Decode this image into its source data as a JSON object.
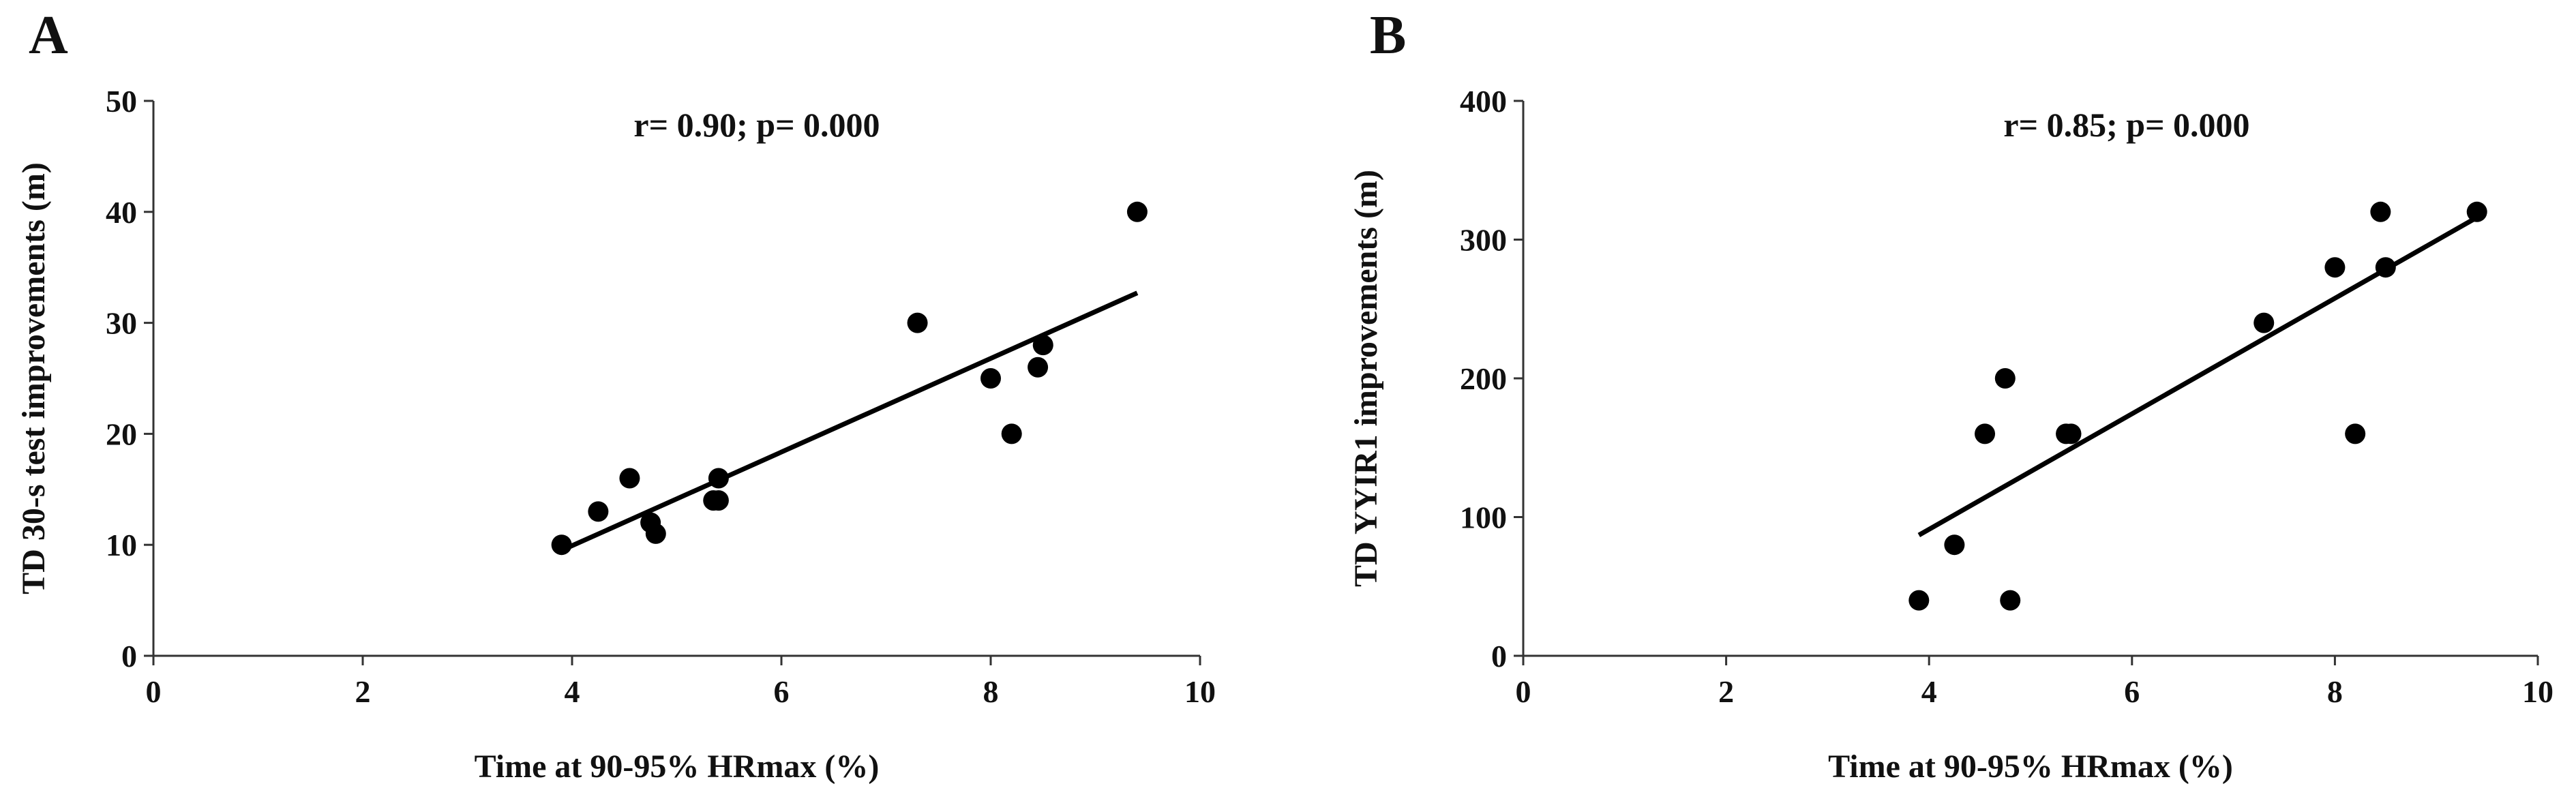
{
  "chart_data": [
    {
      "panel_label": "A",
      "type": "scatter",
      "annotation": "r= 0.90; p= 0.000",
      "xlabel": "Time at 90-95% HRmax (%)",
      "ylabel": "TD 30-s test improvements (m)",
      "xlim": [
        0,
        10
      ],
      "ylim": [
        0,
        50
      ],
      "xticks": [
        "0",
        "2",
        "4",
        "6",
        "8",
        "10"
      ],
      "yticks": [
        "0",
        "10",
        "20",
        "30",
        "40",
        "50"
      ],
      "grid": false,
      "points": [
        {
          "x": 3.9,
          "y": 10
        },
        {
          "x": 4.25,
          "y": 13
        },
        {
          "x": 4.55,
          "y": 16
        },
        {
          "x": 4.75,
          "y": 12
        },
        {
          "x": 4.8,
          "y": 11
        },
        {
          "x": 5.35,
          "y": 14
        },
        {
          "x": 5.4,
          "y": 14
        },
        {
          "x": 5.4,
          "y": 16
        },
        {
          "x": 7.3,
          "y": 30
        },
        {
          "x": 8.0,
          "y": 25
        },
        {
          "x": 8.2,
          "y": 20
        },
        {
          "x": 8.45,
          "y": 26
        },
        {
          "x": 8.5,
          "y": 28
        },
        {
          "x": 9.4,
          "y": 40
        }
      ],
      "trendline": {
        "x": [
          3.9,
          9.4
        ],
        "y": [
          9.5,
          32.7
        ]
      }
    },
    {
      "panel_label": "B",
      "type": "scatter",
      "annotation": "r= 0.85; p= 0.000",
      "xlabel": "Time at 90-95% HRmax (%)",
      "ylabel": "TD YYIR1 improvements (m)",
      "xlim": [
        0,
        10
      ],
      "ylim": [
        0,
        400
      ],
      "xticks": [
        "0",
        "2",
        "4",
        "6",
        "8",
        "10"
      ],
      "yticks": [
        "0",
        "100",
        "200",
        "300",
        "400"
      ],
      "grid": false,
      "points": [
        {
          "x": 3.9,
          "y": 40
        },
        {
          "x": 4.25,
          "y": 80
        },
        {
          "x": 4.55,
          "y": 160
        },
        {
          "x": 4.75,
          "y": 200
        },
        {
          "x": 4.8,
          "y": 40
        },
        {
          "x": 5.35,
          "y": 160
        },
        {
          "x": 5.4,
          "y": 160
        },
        {
          "x": 7.3,
          "y": 240
        },
        {
          "x": 8.0,
          "y": 280
        },
        {
          "x": 8.2,
          "y": 160
        },
        {
          "x": 8.45,
          "y": 320
        },
        {
          "x": 8.5,
          "y": 280
        },
        {
          "x": 9.4,
          "y": 320
        }
      ],
      "trendline": {
        "x": [
          3.9,
          9.4
        ],
        "y": [
          87,
          316
        ]
      }
    }
  ]
}
